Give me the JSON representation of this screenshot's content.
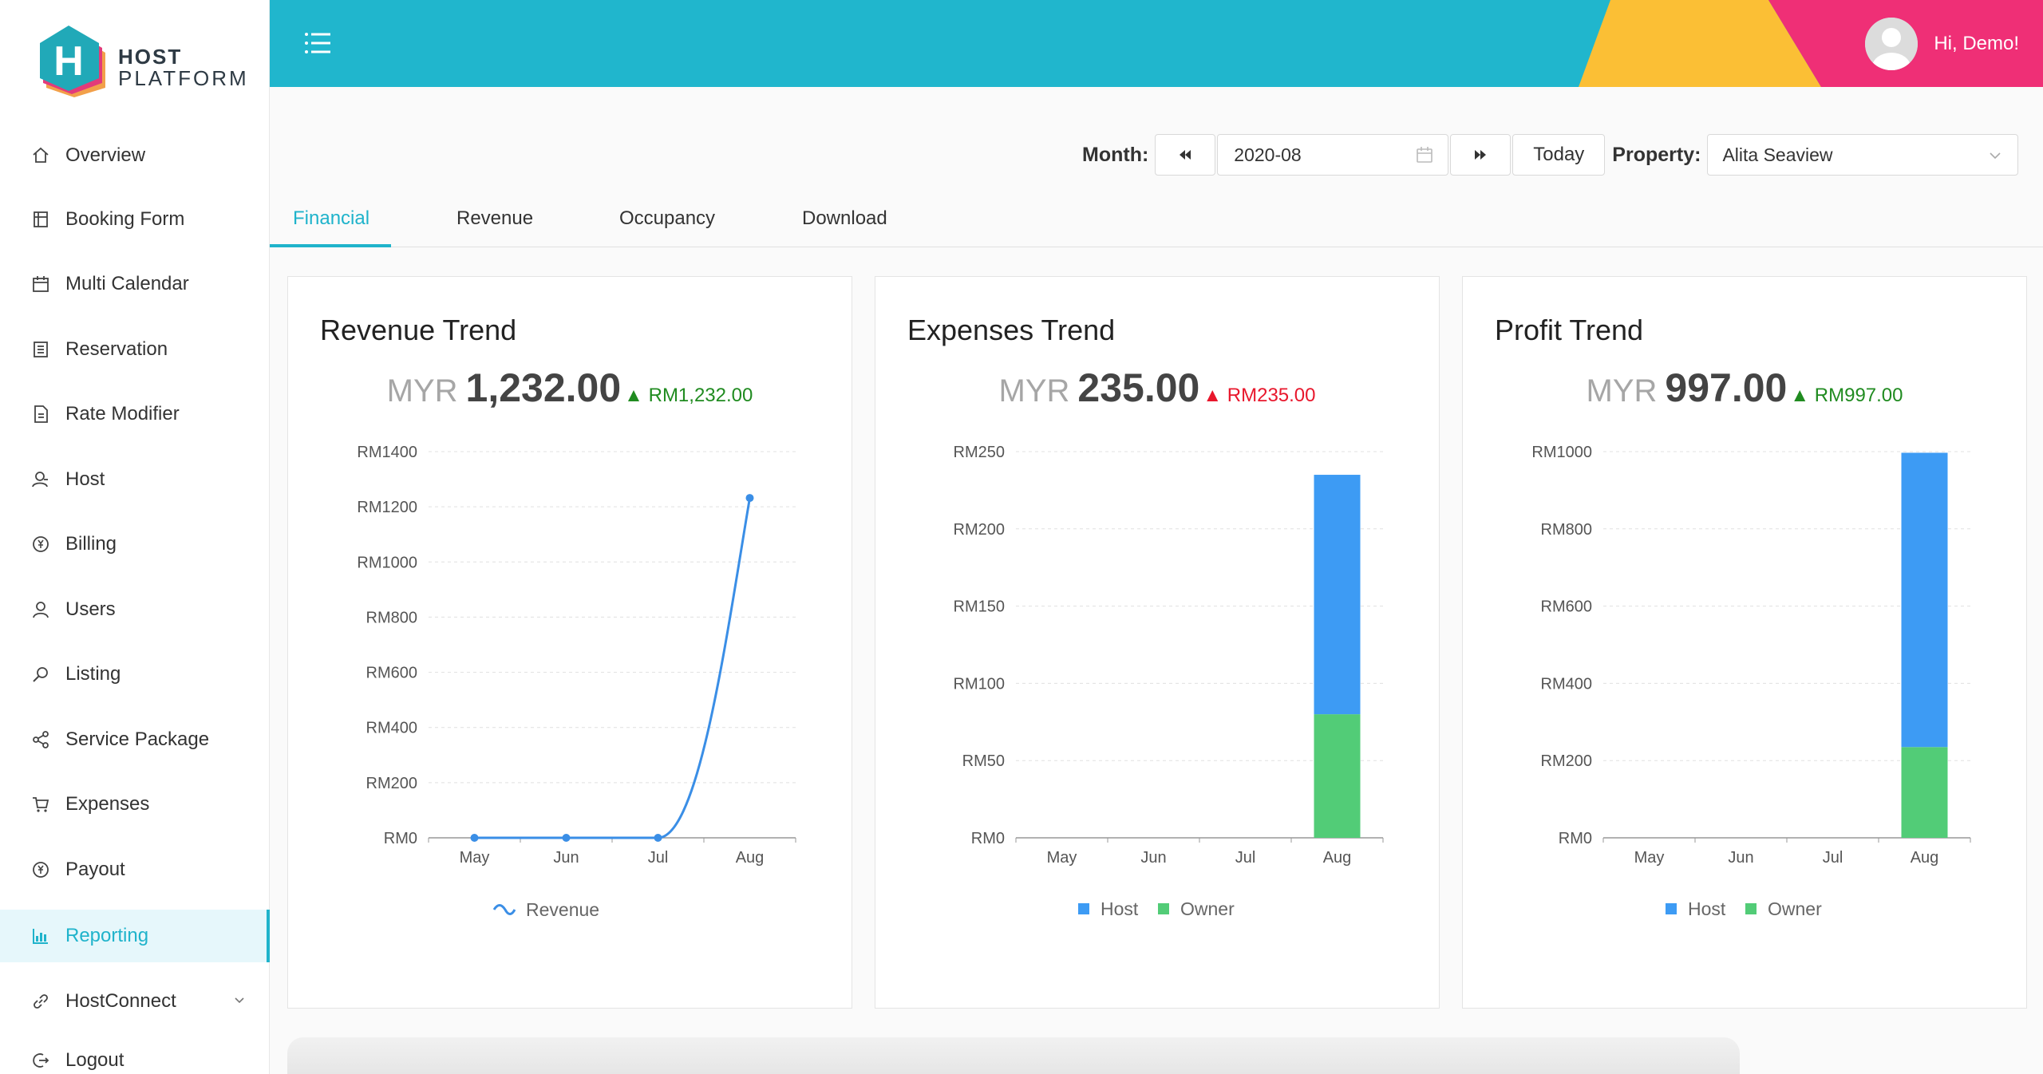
{
  "brand": {
    "word1": "HOST",
    "word2": "PLATFORM",
    "letter": "H"
  },
  "sidebar": {
    "items": [
      {
        "label": "Overview",
        "icon": "home-icon"
      },
      {
        "label": "Booking Form",
        "icon": "form-icon"
      },
      {
        "label": "Multi Calendar",
        "icon": "calendar-icon"
      },
      {
        "label": "Reservation",
        "icon": "list-icon"
      },
      {
        "label": "Rate Modifier",
        "icon": "document-icon"
      },
      {
        "label": "Host",
        "icon": "host-icon"
      },
      {
        "label": "Billing",
        "icon": "billing-icon"
      },
      {
        "label": "Users",
        "icon": "user-icon"
      },
      {
        "label": "Listing",
        "icon": "search-icon"
      },
      {
        "label": "Service Package",
        "icon": "share-icon"
      },
      {
        "label": "Expenses",
        "icon": "cart-icon"
      },
      {
        "label": "Payout",
        "icon": "yen-icon"
      },
      {
        "label": "Reporting",
        "icon": "chart-icon",
        "active": true
      },
      {
        "label": "HostConnect",
        "icon": "link-icon"
      },
      {
        "label": "Logout",
        "icon": "logout-icon"
      }
    ]
  },
  "header": {
    "greeting": "Hi, Demo!",
    "accent": "#20b6cd",
    "yellow": "#fbbf35",
    "pink": "#ef2f76"
  },
  "filters": {
    "month_label": "Month:",
    "month_value": "2020-08",
    "today_label": "Today",
    "property_label": "Property:",
    "property_value": "Alita Seaview"
  },
  "tabs": [
    "Financial",
    "Revenue",
    "Occupancy",
    "Download"
  ],
  "cards": [
    {
      "title": "Revenue Trend",
      "currency": "MYR",
      "value": "1,232.00",
      "delta": "RM1,232.00",
      "delta_dir": "up"
    },
    {
      "title": "Expenses Trend",
      "currency": "MYR",
      "value": "235.00",
      "delta": "RM235.00",
      "delta_dir": "down"
    },
    {
      "title": "Profit Trend",
      "currency": "MYR",
      "value": "997.00",
      "delta": "RM997.00",
      "delta_dir": "up"
    }
  ],
  "chart_data": [
    {
      "type": "line",
      "categories": [
        "May",
        "Jun",
        "Jul",
        "Aug"
      ],
      "series": [
        {
          "name": "Revenue",
          "values": [
            0,
            0,
            0,
            1232
          ],
          "color": "#3a8ee6"
        }
      ],
      "ylim": [
        0,
        1400
      ],
      "yticks": [
        "RM0",
        "RM200",
        "RM400",
        "RM600",
        "RM800",
        "RM1000",
        "RM1200",
        "RM1400"
      ],
      "ytick_values": [
        0,
        200,
        400,
        600,
        800,
        1000,
        1200,
        1400
      ],
      "grid": true,
      "legend": "bottom"
    },
    {
      "type": "bar",
      "stacked": true,
      "categories": [
        "May",
        "Jun",
        "Jul",
        "Aug"
      ],
      "series": [
        {
          "name": "Owner",
          "values": [
            0,
            0,
            0,
            80
          ],
          "color": "#52cc77"
        },
        {
          "name": "Host",
          "values": [
            0,
            0,
            0,
            155
          ],
          "color": "#3d9bf4"
        }
      ],
      "legend_order": [
        "Host",
        "Owner"
      ],
      "ylim": [
        0,
        250
      ],
      "yticks": [
        "RM0",
        "RM50",
        "RM100",
        "RM150",
        "RM200",
        "RM250"
      ],
      "ytick_values": [
        0,
        50,
        100,
        150,
        200,
        250
      ],
      "grid": true,
      "legend": "bottom"
    },
    {
      "type": "bar",
      "stacked": true,
      "categories": [
        "May",
        "Jun",
        "Jul",
        "Aug"
      ],
      "series": [
        {
          "name": "Owner",
          "values": [
            0,
            0,
            0,
            235
          ],
          "color": "#52cc77"
        },
        {
          "name": "Host",
          "values": [
            0,
            0,
            0,
            762
          ],
          "color": "#3d9bf4"
        }
      ],
      "legend_order": [
        "Host",
        "Owner"
      ],
      "ylim": [
        0,
        1000
      ],
      "yticks": [
        "RM0",
        "RM200",
        "RM400",
        "RM600",
        "RM800",
        "RM1000"
      ],
      "ytick_values": [
        0,
        200,
        400,
        600,
        800,
        1000
      ],
      "grid": true,
      "legend": "bottom"
    }
  ]
}
